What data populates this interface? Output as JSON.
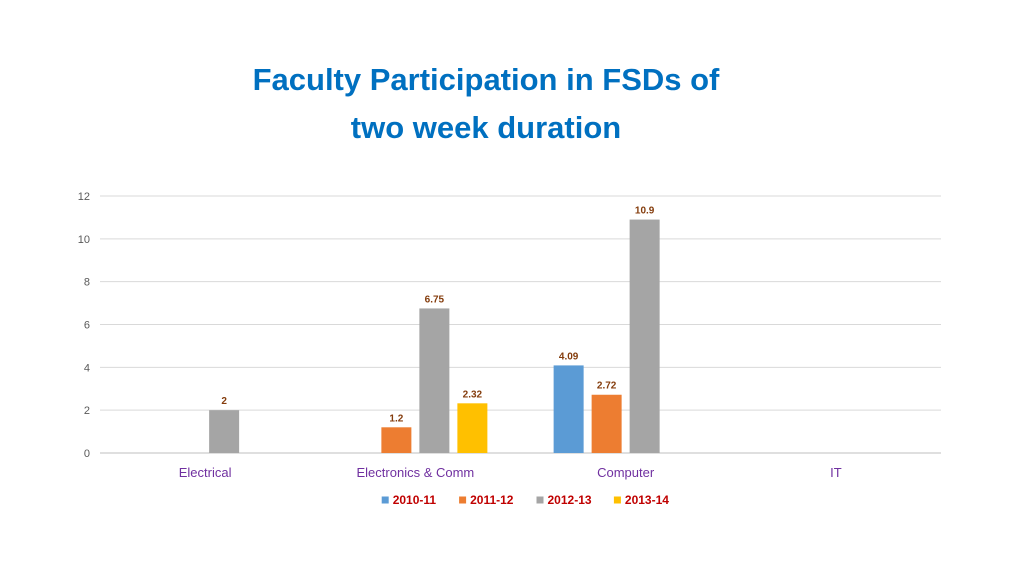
{
  "chart_data": {
    "type": "bar",
    "title_line1": "Faculty Participation in FSDs of",
    "title_line2": "two week duration",
    "categories": [
      "Electrical",
      "Electronics & Comm",
      "Computer",
      "IT"
    ],
    "series": [
      {
        "name": "2010-11",
        "color": "#5B9BD5",
        "values": [
          null,
          null,
          4.09,
          null
        ]
      },
      {
        "name": "2011-12",
        "color": "#ED7D31",
        "values": [
          null,
          1.2,
          2.72,
          null
        ]
      },
      {
        "name": "2012-13",
        "color": "#A5A5A5",
        "values": [
          2,
          6.75,
          10.9,
          null
        ]
      },
      {
        "name": "2013-14",
        "color": "#FFC000",
        "values": [
          null,
          2.32,
          null,
          null
        ]
      }
    ],
    "data_labels": [
      [
        null,
        null,
        "4.09",
        null
      ],
      [
        null,
        "1.2",
        "2.72",
        null
      ],
      [
        "2",
        "6.75",
        "10.9",
        null
      ],
      [
        null,
        "2.32",
        null,
        null
      ]
    ],
    "ylim": [
      0,
      12
    ],
    "yticks": [
      "0",
      "2",
      "4",
      "6",
      "8",
      "10",
      "12"
    ],
    "grid": true,
    "legend_position": "bottom",
    "xlabel": "",
    "ylabel": ""
  }
}
